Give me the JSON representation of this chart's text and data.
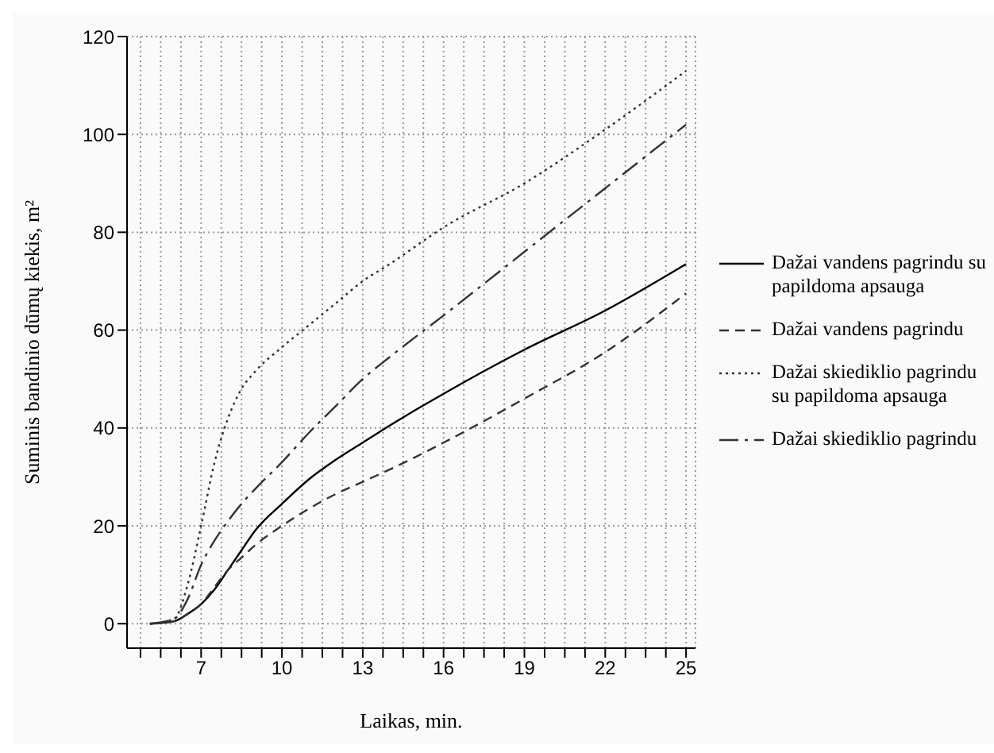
{
  "chart_data": {
    "type": "line",
    "xlabel": "Laikas, min.",
    "ylabel": "Suminis bandinio dūmų kiekis, m²",
    "xlim": [
      4.25,
      25.35
    ],
    "xticks": [
      {
        "value": 4.75,
        "label": null
      },
      {
        "value": 5.5,
        "label": null
      },
      {
        "value": 6.25,
        "label": null
      },
      7,
      {
        "value": 7.75,
        "label": null
      },
      {
        "value": 8.5,
        "label": null
      },
      {
        "value": 9.25,
        "label": null
      },
      10,
      {
        "value": 10.75,
        "label": null
      },
      {
        "value": 11.5,
        "label": null
      },
      {
        "value": 12.25,
        "label": null
      },
      13,
      {
        "value": 13.75,
        "label": null
      },
      {
        "value": 14.5,
        "label": null
      },
      {
        "value": 15.25,
        "label": null
      },
      16,
      {
        "value": 16.75,
        "label": null
      },
      {
        "value": 17.5,
        "label": null
      },
      {
        "value": 18.25,
        "label": null
      },
      19,
      {
        "value": 19.75,
        "label": null
      },
      {
        "value": 20.5,
        "label": null
      },
      {
        "value": 21.25,
        "label": null
      },
      22,
      {
        "value": 22.75,
        "label": null
      },
      {
        "value": 23.5,
        "label": null
      },
      {
        "value": 24.25,
        "label": null
      },
      25
    ],
    "ylim": [
      -5,
      120
    ],
    "yticks": [
      0,
      20,
      40,
      60,
      80,
      100,
      120
    ],
    "grid": true,
    "legend": "right",
    "marker": "none",
    "x": [
      5.1,
      6,
      6.5,
      7,
      7.5,
      8,
      8.5,
      9,
      10,
      11,
      12,
      13,
      14,
      16,
      19,
      22,
      25
    ],
    "series": [
      {
        "name": "Dažai vandens pagrindu su papildoma apsauga",
        "color": "#000000",
        "line_style": "solid",
        "values": [
          0,
          0.5,
          2,
          4,
          7,
          11,
          15,
          19,
          24.5,
          29.5,
          33.5,
          37,
          40.5,
          47,
          56,
          64,
          73.5
        ]
      },
      {
        "name": "Dažai vandens pagrindu",
        "color": "#333333",
        "line_style": "dashed",
        "values": [
          0,
          0.5,
          2,
          4,
          7.5,
          11,
          13.5,
          16,
          20,
          23.5,
          26.5,
          29,
          31.5,
          37,
          46,
          55.5,
          67.5
        ]
      },
      {
        "name": "Dažai skiediklio pagrindu su papildoma apsauga",
        "color": "#333333",
        "line_style": "dotted",
        "values": [
          0,
          1,
          8,
          20,
          33,
          42,
          48,
          51.5,
          56.5,
          61,
          65.5,
          70,
          73.5,
          81,
          90,
          101,
          113
        ]
      },
      {
        "name": "Dažai skiediklio pagrindu",
        "color": "#333333",
        "line_style": "dashdot",
        "values": [
          0,
          1,
          5,
          12,
          17,
          21,
          24.5,
          27.5,
          33,
          39,
          44.5,
          50,
          54.5,
          63,
          76,
          89,
          102
        ]
      }
    ]
  }
}
